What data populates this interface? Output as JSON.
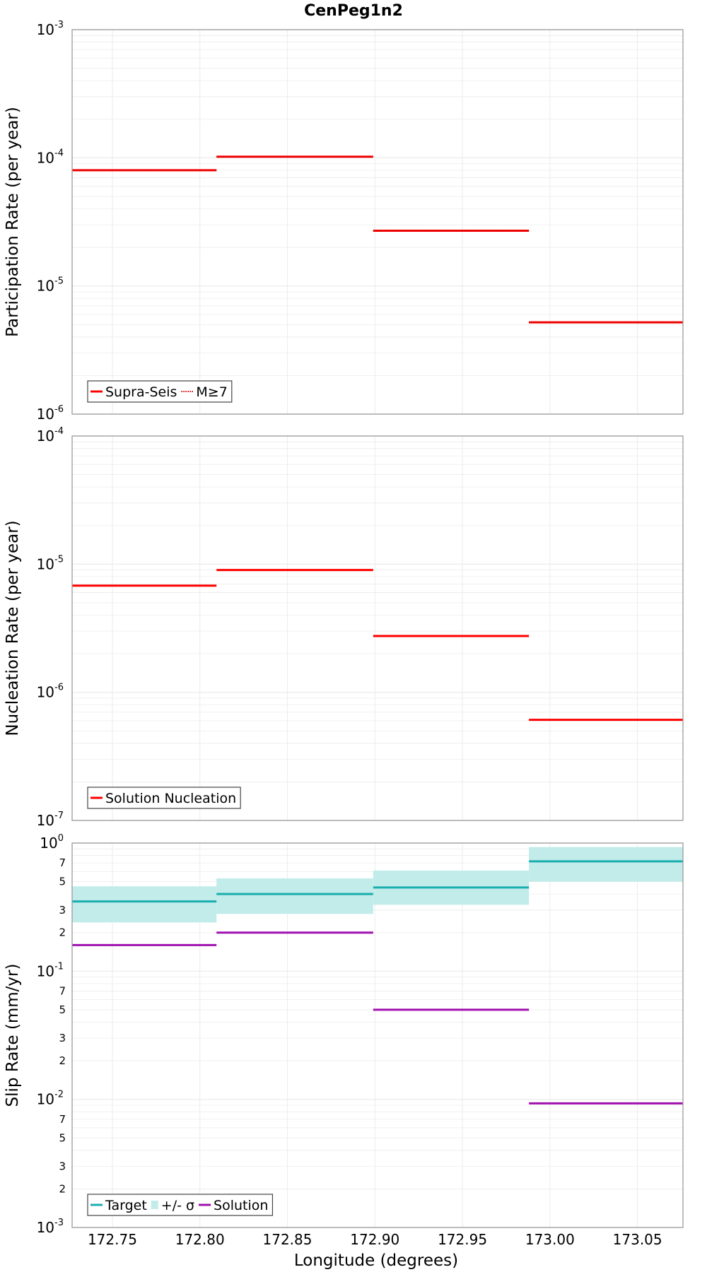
{
  "title": "CenPeg1n2",
  "xlabel": "Longitude (degrees)",
  "xlim": [
    172.727,
    173.076
  ],
  "x_ticks": [
    "172.75",
    "172.80",
    "172.85",
    "172.90",
    "172.95",
    "173.00",
    "173.05"
  ],
  "colors": {
    "red": "#ff0000",
    "target": "#1aaeae",
    "sigma_band": "#c1ecea",
    "solution": "#a010b0",
    "grid": "#ececec",
    "frame": "#9a9a9a"
  },
  "chart_data": [
    {
      "type": "line",
      "ylabel": "Participation Rate (per year)",
      "scale": "log",
      "ylim": [
        1e-06,
        0.001
      ],
      "y_ticks": [
        {
          "base": "10",
          "exp": "-6"
        },
        {
          "base": "10",
          "exp": "-5"
        },
        {
          "base": "10",
          "exp": "-4"
        },
        {
          "base": "10",
          "exp": "-3"
        }
      ],
      "legend_position": "bottom-left",
      "legend": [
        {
          "label": "Supra-Seis",
          "style": "solid"
        },
        {
          "label": "M≥7",
          "style": "dotted"
        }
      ],
      "series": [
        {
          "name": "Supra-Seis",
          "style": "solid",
          "segments": [
            {
              "x": [
                172.727,
                172.8095
              ],
              "y": 8e-05
            },
            {
              "x": [
                172.8095,
                172.899
              ],
              "y": 0.000102
            },
            {
              "x": [
                172.899,
                172.988
              ],
              "y": 2.7e-05
            },
            {
              "x": [
                172.988,
                173.076
              ],
              "y": 5.2e-06
            }
          ]
        },
        {
          "name": "M≥7",
          "style": "dotted",
          "segments": [
            {
              "x": [
                172.727,
                172.8095
              ],
              "y": 8e-05
            },
            {
              "x": [
                172.8095,
                172.899
              ],
              "y": 0.000102
            },
            {
              "x": [
                172.899,
                172.988
              ],
              "y": 2.7e-05
            },
            {
              "x": [
                172.988,
                173.076
              ],
              "y": 5.2e-06
            }
          ]
        }
      ]
    },
    {
      "type": "line",
      "ylabel": "Nucleation Rate (per year)",
      "scale": "log",
      "ylim": [
        1e-07,
        0.0001
      ],
      "y_ticks": [
        {
          "base": "10",
          "exp": "-7"
        },
        {
          "base": "10",
          "exp": "-6"
        },
        {
          "base": "10",
          "exp": "-5"
        },
        {
          "base": "10",
          "exp": "-4"
        }
      ],
      "legend_position": "bottom-left",
      "legend": [
        {
          "label": "Solution Nucleation",
          "style": "solid"
        }
      ],
      "series": [
        {
          "name": "Solution Nucleation",
          "style": "solid",
          "segments": [
            {
              "x": [
                172.727,
                172.8095
              ],
              "y": 6.8e-06
            },
            {
              "x": [
                172.8095,
                172.899
              ],
              "y": 9e-06
            },
            {
              "x": [
                172.899,
                172.988
              ],
              "y": 2.75e-06
            },
            {
              "x": [
                172.988,
                173.076
              ],
              "y": 6.1e-07
            }
          ]
        }
      ]
    },
    {
      "type": "area",
      "ylabel": "Slip Rate (mm/yr)",
      "scale": "log",
      "ylim": [
        0.001,
        1.0
      ],
      "y_ticks": [
        {
          "base": "10",
          "exp": "-3"
        },
        {
          "base": "10",
          "exp": "-2"
        },
        {
          "base": "10",
          "exp": "-1"
        },
        {
          "base": "10",
          "exp": "0"
        }
      ],
      "y_minor_labels": [
        {
          "value": 0.7,
          "label": "7"
        },
        {
          "value": 0.5,
          "label": "5"
        },
        {
          "value": 0.3,
          "label": "3"
        },
        {
          "value": 0.2,
          "label": "2"
        },
        {
          "value": 0.07,
          "label": "7"
        },
        {
          "value": 0.05,
          "label": "5"
        },
        {
          "value": 0.03,
          "label": "3"
        },
        {
          "value": 0.02,
          "label": "2"
        },
        {
          "value": 0.007,
          "label": "7"
        },
        {
          "value": 0.005,
          "label": "5"
        },
        {
          "value": 0.003,
          "label": "3"
        },
        {
          "value": 0.002,
          "label": "2"
        }
      ],
      "legend_position": "bottom-left",
      "legend": [
        {
          "label": "Target",
          "style": "line-target"
        },
        {
          "label": "+/- σ",
          "style": "band"
        },
        {
          "label": "Solution",
          "style": "line-solution"
        }
      ],
      "bands": [
        {
          "x": [
            172.727,
            172.8095
          ],
          "low": 0.24,
          "high": 0.46
        },
        {
          "x": [
            172.8095,
            172.899
          ],
          "low": 0.28,
          "high": 0.53
        },
        {
          "x": [
            172.899,
            172.988
          ],
          "low": 0.33,
          "high": 0.61
        },
        {
          "x": [
            172.988,
            173.076
          ],
          "low": 0.5,
          "high": 0.93
        }
      ],
      "series": [
        {
          "name": "Target",
          "segments": [
            {
              "x": [
                172.727,
                172.8095
              ],
              "y": 0.35
            },
            {
              "x": [
                172.8095,
                172.899
              ],
              "y": 0.4
            },
            {
              "x": [
                172.899,
                172.988
              ],
              "y": 0.45
            },
            {
              "x": [
                172.988,
                173.076
              ],
              "y": 0.72
            }
          ]
        },
        {
          "name": "Solution",
          "segments": [
            {
              "x": [
                172.727,
                172.8095
              ],
              "y": 0.16
            },
            {
              "x": [
                172.8095,
                172.899
              ],
              "y": 0.2
            },
            {
              "x": [
                172.899,
                172.988
              ],
              "y": 0.05
            },
            {
              "x": [
                172.988,
                173.076
              ],
              "y": 0.0093
            }
          ]
        }
      ]
    }
  ]
}
